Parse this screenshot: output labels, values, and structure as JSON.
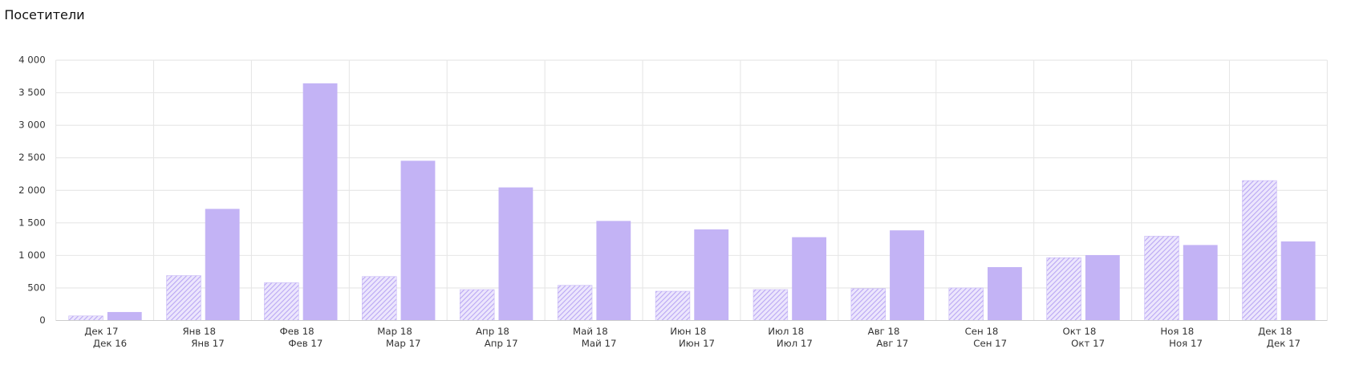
{
  "chart_data": {
    "type": "bar",
    "title": "Посетители",
    "categories": [
      "Дек 17",
      "Янв 18",
      "Фев 18",
      "Мар 18",
      "Апр 18",
      "Май 18",
      "Июн 18",
      "Июл 18",
      "Авг 18",
      "Сен 18",
      "Окт 18",
      "Ноя 18",
      "Дек 18"
    ],
    "secondary_categories": [
      "Дек 16",
      "Янв 17",
      "Фев 17",
      "Мар 17",
      "Апр 17",
      "Май 17",
      "Июн 17",
      "Июл 17",
      "Авг 17",
      "Сен 17",
      "Окт 17",
      "Ноя 17",
      "Дек 17"
    ],
    "series": [
      {
        "color": "#c3b3f5",
        "pattern": "hatched",
        "values": [
          70,
          690,
          580,
          675,
          475,
          540,
          450,
          475,
          490,
          500,
          965,
          1295,
          2150
        ]
      },
      {
        "color": "#c3b3f5",
        "pattern": "solid",
        "values": [
          130,
          1715,
          3645,
          2455,
          2045,
          1530,
          1400,
          1280,
          1385,
          820,
          1005,
          1160,
          1215
        ]
      }
    ],
    "ylim": [
      0,
      4000
    ],
    "yticks": [
      0,
      500,
      {
        "value": 1000,
        "label": "1 000"
      },
      {
        "value": 1500,
        "label": "1 500"
      },
      {
        "value": 2000,
        "label": "2 000"
      },
      {
        "value": 2500,
        "label": "2 500"
      },
      {
        "value": 3000,
        "label": "3 000"
      },
      {
        "value": 3500,
        "label": "3 500"
      },
      {
        "value": 4000,
        "label": "4 000"
      }
    ],
    "grid": true
  }
}
